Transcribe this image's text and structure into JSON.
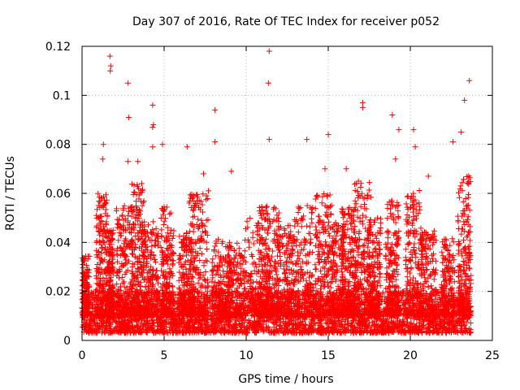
{
  "chart_data": {
    "type": "scatter",
    "title": "Day 307 of 2016, Rate Of TEC Index for receiver p052",
    "xlabel": "GPS time / hours",
    "ylabel": "ROTI / TECUs",
    "xlim": [
      0,
      25
    ],
    "ylim": [
      0,
      0.12
    ],
    "x_ticks": [
      0,
      5,
      10,
      15,
      20,
      25
    ],
    "x_tick_labels": [
      "0",
      "5",
      "10",
      "15",
      "20",
      "25"
    ],
    "y_ticks": [
      0,
      0.02,
      0.04,
      0.06,
      0.08,
      0.1,
      0.12
    ],
    "y_tick_labels": [
      "0",
      "0.02",
      "0.04",
      "0.06",
      "0.08",
      "0.1",
      "0.12"
    ],
    "grid": true,
    "marker": "+",
    "series_color": "#ff0000",
    "x_data_range": [
      0,
      23.7
    ],
    "baseline_band": [
      0.003,
      0.02
    ],
    "notable_points": [
      {
        "x": 1.7,
        "y": 0.116
      },
      {
        "x": 1.75,
        "y": 0.112
      },
      {
        "x": 1.72,
        "y": 0.11
      },
      {
        "x": 2.8,
        "y": 0.105
      },
      {
        "x": 2.85,
        "y": 0.091
      },
      {
        "x": 4.3,
        "y": 0.096
      },
      {
        "x": 4.35,
        "y": 0.088
      },
      {
        "x": 4.3,
        "y": 0.087
      },
      {
        "x": 4.3,
        "y": 0.079
      },
      {
        "x": 8.1,
        "y": 0.094
      },
      {
        "x": 11.4,
        "y": 0.118
      },
      {
        "x": 11.35,
        "y": 0.105
      },
      {
        "x": 11.4,
        "y": 0.082
      },
      {
        "x": 6.4,
        "y": 0.079
      },
      {
        "x": 8.1,
        "y": 0.081
      },
      {
        "x": 13.7,
        "y": 0.082
      },
      {
        "x": 15.0,
        "y": 0.084
      },
      {
        "x": 17.1,
        "y": 0.097
      },
      {
        "x": 17.1,
        "y": 0.095
      },
      {
        "x": 18.9,
        "y": 0.092
      },
      {
        "x": 19.3,
        "y": 0.086
      },
      {
        "x": 20.2,
        "y": 0.086
      },
      {
        "x": 22.6,
        "y": 0.081
      },
      {
        "x": 23.3,
        "y": 0.098
      },
      {
        "x": 23.6,
        "y": 0.106
      },
      {
        "x": 1.3,
        "y": 0.08
      },
      {
        "x": 1.25,
        "y": 0.074
      },
      {
        "x": 2.8,
        "y": 0.073
      },
      {
        "x": 3.4,
        "y": 0.073
      },
      {
        "x": 4.9,
        "y": 0.08
      },
      {
        "x": 7.4,
        "y": 0.068
      },
      {
        "x": 9.1,
        "y": 0.069
      },
      {
        "x": 14.8,
        "y": 0.07
      },
      {
        "x": 16.1,
        "y": 0.07
      },
      {
        "x": 19.1,
        "y": 0.074
      },
      {
        "x": 20.3,
        "y": 0.079
      },
      {
        "x": 21.1,
        "y": 0.067
      },
      {
        "x": 23.1,
        "y": 0.085
      }
    ],
    "clusters": [
      {
        "center": 0.2,
        "width": 0.25,
        "peak": 0.035
      },
      {
        "center": 1.2,
        "width": 0.35,
        "peak": 0.06
      },
      {
        "center": 1.75,
        "width": 0.15,
        "peak": 0.045
      },
      {
        "center": 2.6,
        "width": 0.5,
        "peak": 0.055
      },
      {
        "center": 3.4,
        "width": 0.4,
        "peak": 0.065
      },
      {
        "center": 4.2,
        "width": 0.45,
        "peak": 0.05
      },
      {
        "center": 5.2,
        "width": 0.4,
        "peak": 0.055
      },
      {
        "center": 6.3,
        "width": 0.4,
        "peak": 0.045
      },
      {
        "center": 7.1,
        "width": 0.6,
        "peak": 0.062
      },
      {
        "center": 8.5,
        "width": 0.6,
        "peak": 0.042
      },
      {
        "center": 9.4,
        "width": 0.6,
        "peak": 0.04
      },
      {
        "center": 10.7,
        "width": 0.8,
        "peak": 0.05
      },
      {
        "center": 11.4,
        "width": 0.6,
        "peak": 0.055
      },
      {
        "center": 12.4,
        "width": 0.5,
        "peak": 0.048
      },
      {
        "center": 13.5,
        "width": 0.6,
        "peak": 0.055
      },
      {
        "center": 14.7,
        "width": 0.5,
        "peak": 0.06
      },
      {
        "center": 15.6,
        "width": 0.4,
        "peak": 0.048
      },
      {
        "center": 16.3,
        "width": 0.5,
        "peak": 0.055
      },
      {
        "center": 17.0,
        "width": 0.6,
        "peak": 0.065
      },
      {
        "center": 17.8,
        "width": 0.4,
        "peak": 0.05
      },
      {
        "center": 18.9,
        "width": 0.4,
        "peak": 0.058
      },
      {
        "center": 20.2,
        "width": 0.5,
        "peak": 0.062
      },
      {
        "center": 21.1,
        "width": 0.5,
        "peak": 0.045
      },
      {
        "center": 22.3,
        "width": 0.4,
        "peak": 0.042
      },
      {
        "center": 23.3,
        "width": 0.4,
        "peak": 0.068
      }
    ]
  }
}
